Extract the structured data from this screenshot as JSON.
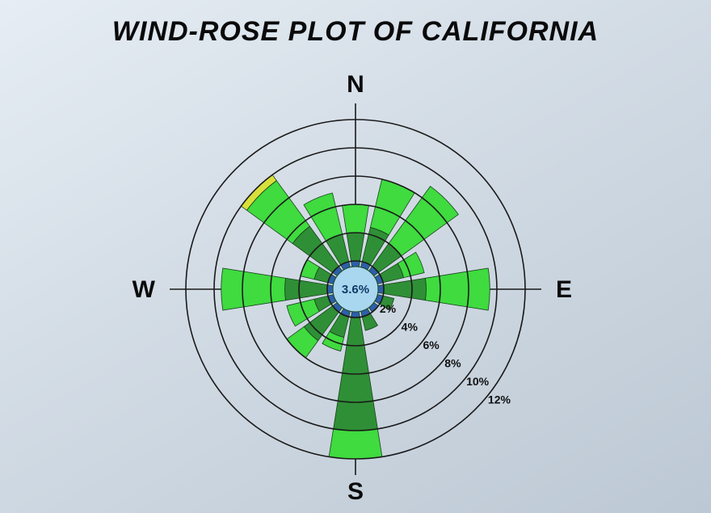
{
  "title": "WIND-ROSE PLOT OF CALIFORNIA",
  "chart": {
    "type": "windrose",
    "center_label": "3.6%",
    "center_color": "#a9d7ef",
    "center_label_color": "#0e3b65",
    "center_label_fontsize": 15,
    "center_radius_pct": 1.6,
    "background": "transparent",
    "circle_stroke": "#1a1a1a",
    "circle_stroke_width": 1.6,
    "cardinals": {
      "N": {
        "angle": 0,
        "label": "N"
      },
      "E": {
        "angle": 90,
        "label": "E"
      },
      "S": {
        "angle": 180,
        "label": "S"
      },
      "W": {
        "angle": 270,
        "label": "W"
      }
    },
    "cardinal_font_size": 30,
    "cardinal_font_weight": "900",
    "tick_labels": [
      "2%",
      "4%",
      "6%",
      "8%",
      "10%",
      "12%"
    ],
    "tick_angle_deg": 130,
    "tick_label_fontsize": 14,
    "tick_label_weight": "700",
    "rings_pct": [
      2,
      4,
      6,
      8,
      10,
      12
    ],
    "max_pct": 12,
    "sector_half_width_deg": 9,
    "series_colors": {
      "blue": "#2d5fa9",
      "dark_green": "#2f8f36",
      "bright_green": "#3fdb3f",
      "yellow": "#d9e03a"
    },
    "wedge_stroke": "#17421b",
    "wedge_stroke_width": 0.8,
    "sectors": [
      {
        "dir": "N",
        "angle": 0,
        "stack": [
          {
            "c": "blue",
            "to": 2.0
          },
          {
            "c": "dark_green",
            "to": 4.0
          },
          {
            "c": "bright_green",
            "to": 6.0
          }
        ]
      },
      {
        "dir": "NNE",
        "angle": 22.5,
        "stack": [
          {
            "c": "blue",
            "to": 2.0
          },
          {
            "c": "dark_green",
            "to": 4.5
          },
          {
            "c": "bright_green",
            "to": 8.0
          }
        ]
      },
      {
        "dir": "NE",
        "angle": 45,
        "stack": [
          {
            "c": "blue",
            "to": 2.0
          },
          {
            "c": "dark_green",
            "to": 4.0
          },
          {
            "c": "bright_green",
            "to": 9.0
          }
        ]
      },
      {
        "dir": "ENE",
        "angle": 67.5,
        "stack": [
          {
            "c": "blue",
            "to": 2.0
          },
          {
            "c": "dark_green",
            "to": 3.5
          },
          {
            "c": "bright_green",
            "to": 5.0
          }
        ]
      },
      {
        "dir": "E",
        "angle": 90,
        "stack": [
          {
            "c": "blue",
            "to": 2.0
          },
          {
            "c": "dark_green",
            "to": 5.0
          },
          {
            "c": "bright_green",
            "to": 9.5
          }
        ]
      },
      {
        "dir": "ESE",
        "angle": 112.5,
        "stack": [
          {
            "c": "blue",
            "to": 2.0
          },
          {
            "c": "dark_green",
            "to": 2.8
          }
        ]
      },
      {
        "dir": "SE",
        "angle": 135,
        "stack": [
          {
            "c": "blue",
            "to": 2.0
          }
        ]
      },
      {
        "dir": "SSE",
        "angle": 157.5,
        "stack": [
          {
            "c": "blue",
            "to": 2.0
          },
          {
            "c": "dark_green",
            "to": 3.0
          }
        ]
      },
      {
        "dir": "S",
        "angle": 180,
        "stack": [
          {
            "c": "blue",
            "to": 2.0
          },
          {
            "c": "dark_green",
            "to": 10.0
          },
          {
            "c": "bright_green",
            "to": 12.0
          }
        ]
      },
      {
        "dir": "SSW",
        "angle": 202.5,
        "stack": [
          {
            "c": "blue",
            "to": 2.0
          },
          {
            "c": "dark_green",
            "to": 3.5
          },
          {
            "c": "bright_green",
            "to": 4.5
          }
        ]
      },
      {
        "dir": "SW",
        "angle": 225,
        "stack": [
          {
            "c": "blue",
            "to": 2.0
          },
          {
            "c": "dark_green",
            "to": 4.5
          },
          {
            "c": "bright_green",
            "to": 6.0
          }
        ]
      },
      {
        "dir": "WSW",
        "angle": 247.5,
        "stack": [
          {
            "c": "blue",
            "to": 2.0
          },
          {
            "c": "dark_green",
            "to": 3.0
          },
          {
            "c": "bright_green",
            "to": 5.0
          }
        ]
      },
      {
        "dir": "W",
        "angle": 270,
        "stack": [
          {
            "c": "blue",
            "to": 2.0
          },
          {
            "c": "dark_green",
            "to": 5.0
          },
          {
            "c": "bright_green",
            "to": 9.5
          }
        ]
      },
      {
        "dir": "WNW",
        "angle": 292.5,
        "stack": [
          {
            "c": "blue",
            "to": 2.0
          },
          {
            "c": "dark_green",
            "to": 3.0
          },
          {
            "c": "bright_green",
            "to": 4.0
          }
        ]
      },
      {
        "dir": "NW",
        "angle": 315,
        "stack": [
          {
            "c": "blue",
            "to": 2.0
          },
          {
            "c": "dark_green",
            "to": 5.5
          },
          {
            "c": "bright_green",
            "to": 9.5
          },
          {
            "c": "yellow",
            "to": 10.0
          }
        ]
      },
      {
        "dir": "NNW",
        "angle": 337.5,
        "stack": [
          {
            "c": "blue",
            "to": 2.0
          },
          {
            "c": "dark_green",
            "to": 4.0
          },
          {
            "c": "bright_green",
            "to": 7.0
          }
        ]
      }
    ]
  }
}
